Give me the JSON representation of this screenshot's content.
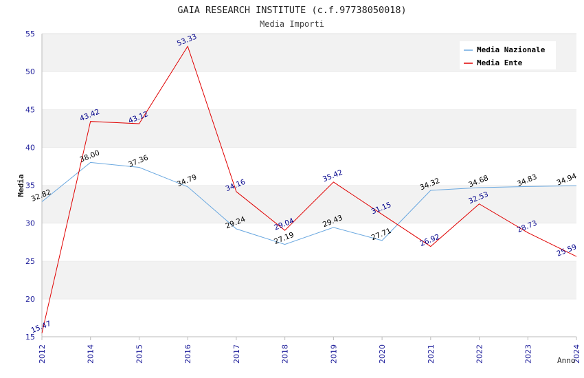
{
  "chart_data": {
    "type": "line",
    "title": "GAIA RESEARCH INSTITUTE (c.f.97738050018)",
    "subtitle": "Media Importi",
    "xlabel": "Anno",
    "ylabel": "Media",
    "categories": [
      "2012",
      "2014",
      "2015",
      "2016",
      "2017",
      "2018",
      "2019",
      "2020",
      "2021",
      "2022",
      "2023",
      "2024"
    ],
    "ylim": [
      15,
      55
    ],
    "yticks": [
      "15",
      "20",
      "25",
      "30",
      "35",
      "40",
      "45",
      "50",
      "55"
    ],
    "grid": "horizontal alternating bands",
    "legend_position": "top-right",
    "series": [
      {
        "name": "Media Nazionale",
        "color": "#6aa8e0",
        "label_color": "#000000",
        "values": [
          32.82,
          38.0,
          37.36,
          34.79,
          29.24,
          27.19,
          29.43,
          27.71,
          34.32,
          34.68,
          34.83,
          34.94
        ],
        "labels": [
          "32.82",
          "38.00",
          "37.36",
          "34.79",
          "29.24",
          "27.19",
          "29.43",
          "27.71",
          "34.32",
          "34.68",
          "34.83",
          "34.94"
        ]
      },
      {
        "name": "Media Ente",
        "color": "#e00000",
        "label_color": "#00008b",
        "values": [
          15.47,
          43.42,
          43.12,
          53.33,
          34.16,
          29.04,
          35.42,
          31.15,
          26.92,
          32.53,
          28.73,
          25.59
        ],
        "labels": [
          "15.47",
          "43.42",
          "43.12",
          "53.33",
          "34.16",
          "29.04",
          "35.42",
          "31.15",
          "26.92",
          "32.53",
          "28.73",
          "25.59"
        ]
      }
    ]
  }
}
